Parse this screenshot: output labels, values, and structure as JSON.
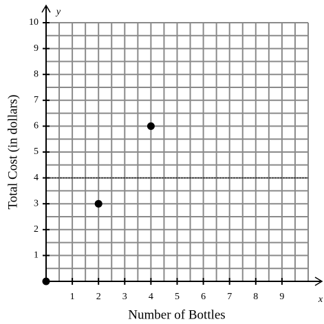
{
  "chart_data": {
    "type": "scatter",
    "x_label": "Number of Bottles",
    "y_label": "Total Cost (in dollars)",
    "x_axis_name": "x",
    "y_axis_name": "y",
    "x": [
      0,
      2,
      4
    ],
    "values": [
      0,
      3,
      6
    ],
    "color": "#000000",
    "xlim": [
      0,
      10
    ],
    "ylim": [
      0,
      10
    ],
    "xticks": [
      1,
      2,
      3,
      4,
      5,
      6,
      7,
      8,
      9
    ],
    "yticks": [
      1,
      2,
      3,
      4,
      5,
      6,
      7,
      8,
      9,
      10
    ],
    "grid": true,
    "reference_lines": [
      4
    ]
  }
}
